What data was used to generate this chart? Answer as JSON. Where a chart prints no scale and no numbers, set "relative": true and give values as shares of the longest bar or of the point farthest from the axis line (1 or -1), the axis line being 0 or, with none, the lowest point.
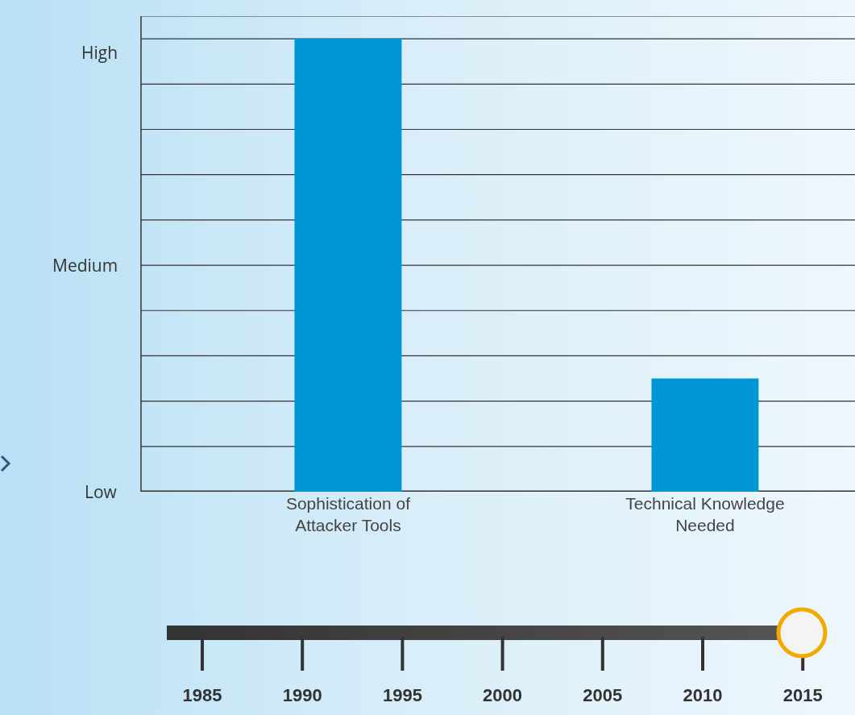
{
  "chart_data": {
    "type": "bar",
    "relative": true,
    "grid": "y",
    "categories": [
      "Sophistication of Attacker Tools",
      "Technical Knowledge Needed"
    ],
    "values": [
      1,
      0.25
    ],
    "color": "#0096d6",
    "annotations": [
      "Low",
      "Medium",
      "High",
      "1985",
      "1990",
      "1995",
      "2000",
      "2005",
      "2010",
      "2015"
    ]
  }
}
